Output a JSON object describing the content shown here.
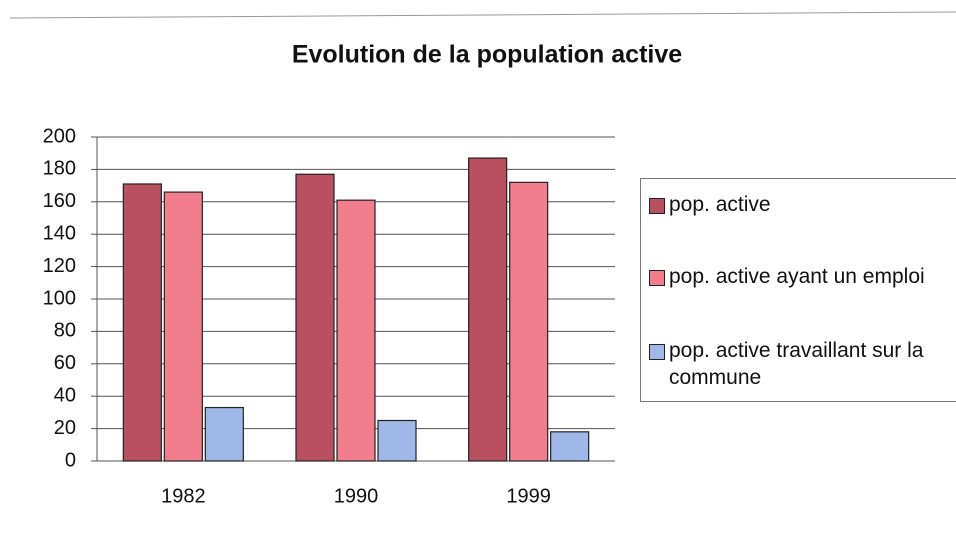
{
  "chart_data": {
    "type": "bar",
    "title": "Evolution de la population active",
    "categories": [
      "1982",
      "1990",
      "1999"
    ],
    "series": [
      {
        "name": "pop. active",
        "color": "#b9505f",
        "values": [
          171,
          177,
          187
        ]
      },
      {
        "name": "pop. active ayant un emploi",
        "color": "#f27d8c",
        "values": [
          166,
          161,
          172
        ]
      },
      {
        "name": "pop. active travaillant sur la commune",
        "color": "#9fb8e8",
        "values": [
          33,
          25,
          18
        ]
      }
    ],
    "ylim": [
      0,
      200
    ],
    "yticks": [
      0,
      20,
      40,
      60,
      80,
      100,
      120,
      140,
      160,
      180,
      200
    ],
    "grid": true,
    "legend": "right"
  }
}
